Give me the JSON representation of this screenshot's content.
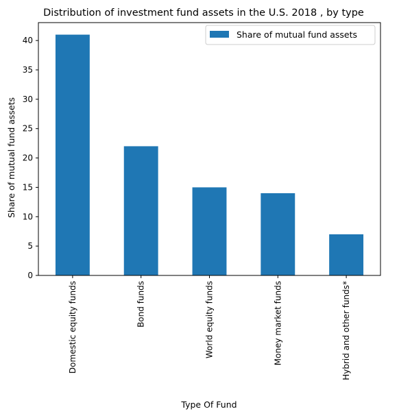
{
  "chart_data": {
    "type": "bar",
    "title": "Distribution of investment fund assets in the U.S. 2018 , by type",
    "xlabel": "Type Of Fund",
    "ylabel": "Share of mutual fund assets",
    "categories": [
      "Domestic equity funds",
      "Bond funds",
      "World equity funds",
      "Money market funds",
      "Hybrid and other funds*"
    ],
    "series": [
      {
        "name": "Share of mutual fund assets",
        "values": [
          41,
          22,
          15,
          14,
          7
        ]
      }
    ],
    "ylim": [
      0,
      43.05
    ],
    "yticks": [
      0,
      5,
      10,
      15,
      20,
      25,
      30,
      35,
      40
    ],
    "grid": false,
    "legend_position": "top-right",
    "colors": {
      "bar": "#1f77b4"
    }
  }
}
